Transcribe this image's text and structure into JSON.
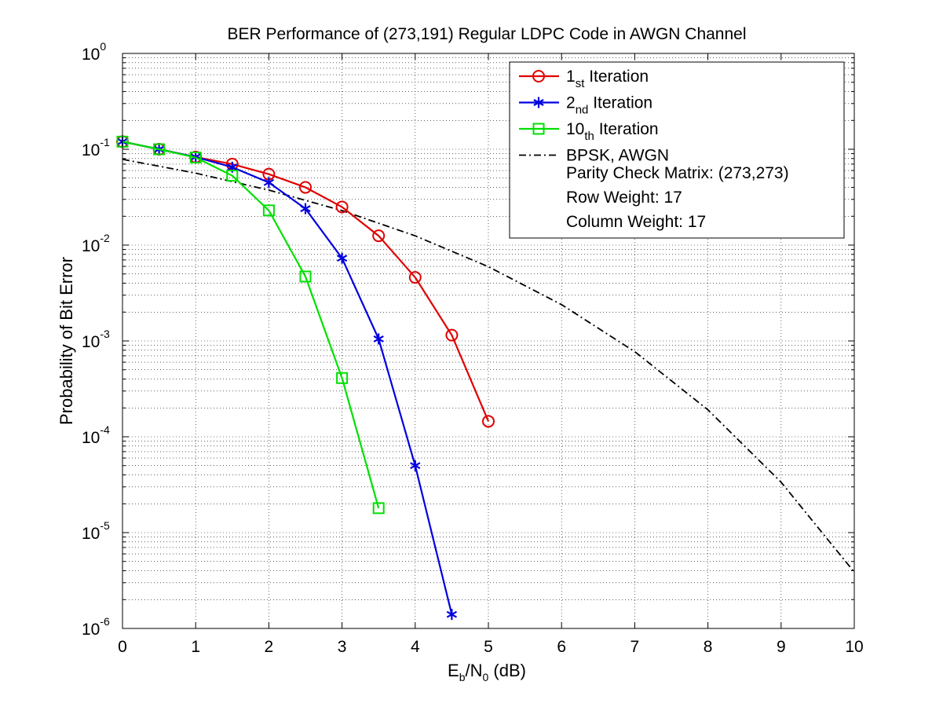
{
  "chart_data": {
    "type": "line",
    "title": "BER Performance of (273,191) Regular LDPC Code in AWGN Channel",
    "xlabel": {
      "a": "E",
      "a_sub": "b",
      "b": "/N",
      "b_sub": "0",
      "c": " (dB)"
    },
    "ylabel": "Probability of Bit Error",
    "xlim": [
      0,
      10
    ],
    "ylim": [
      1e-06,
      1
    ],
    "yscale": "log",
    "grid": "major and minor",
    "legend_position": "top-right",
    "x_ticks": [
      "0",
      "1",
      "2",
      "3",
      "4",
      "5",
      "6",
      "7",
      "8",
      "9",
      "10"
    ],
    "y_ticks": [
      {
        "base": "10",
        "exp": "-6",
        "value": 1e-06
      },
      {
        "base": "10",
        "exp": "-5",
        "value": 1e-05
      },
      {
        "base": "10",
        "exp": "-4",
        "value": 0.0001
      },
      {
        "base": "10",
        "exp": "-3",
        "value": 0.001
      },
      {
        "base": "10",
        "exp": "-2",
        "value": 0.01
      },
      {
        "base": "10",
        "exp": "-1",
        "value": 0.1
      },
      {
        "base": "10",
        "exp": "0",
        "value": 1
      }
    ],
    "series": [
      {
        "label": "1",
        "label_sub": "st",
        "label_rest": " Iteration",
        "color": "#e00000",
        "marker": "circle",
        "style": "solid",
        "x": [
          0,
          0.5,
          1,
          1.5,
          2,
          2.5,
          3,
          3.5,
          4,
          4.5,
          5
        ],
        "y": [
          0.12,
          0.1,
          0.083,
          0.07,
          0.055,
          0.04,
          0.025,
          0.0125,
          0.0046,
          0.00115,
          0.000145
        ]
      },
      {
        "label": "2",
        "label_sub": "nd",
        "label_rest": " Iteration",
        "color": "#0000e0",
        "marker": "asterisk",
        "style": "solid",
        "x": [
          0,
          0.5,
          1,
          1.5,
          2,
          2.5,
          3,
          3.5,
          4,
          4.5
        ],
        "y": [
          0.12,
          0.1,
          0.083,
          0.065,
          0.045,
          0.024,
          0.0073,
          0.00105,
          5e-05,
          1.4e-06
        ]
      },
      {
        "label": "10",
        "label_sub": "th",
        "label_rest": " Iteration",
        "color": "#00e000",
        "marker": "square",
        "style": "solid",
        "x": [
          0,
          0.5,
          1,
          1.5,
          2,
          2.5,
          3,
          3.5
        ],
        "y": [
          0.12,
          0.1,
          0.082,
          0.053,
          0.023,
          0.0047,
          0.00041,
          1.8e-05
        ]
      },
      {
        "label": "BPSK, AWGN",
        "label_sub": "",
        "label_rest": "",
        "color": "#000000",
        "marker": "none",
        "style": "dashdot",
        "x": [
          0,
          1,
          2,
          3,
          4,
          5,
          6,
          7,
          8,
          9,
          10
        ],
        "y": [
          0.0786,
          0.0563,
          0.0375,
          0.0229,
          0.0125,
          0.00595,
          0.00239,
          0.000773,
          0.000191,
          3.36e-05,
          3.87e-06
        ]
      }
    ],
    "legend_notes": [
      "Parity Check Matrix: (273,273)",
      "Row Weight: 17",
      "Column Weight: 17"
    ]
  }
}
